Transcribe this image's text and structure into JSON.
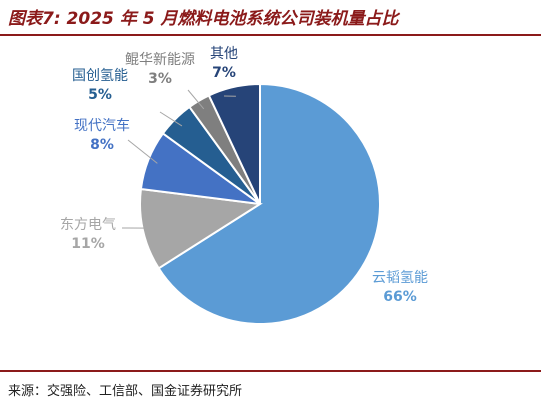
{
  "title": "图表7: 2025 年 5 月燃料电池系统公司装机量占比",
  "source": "来源：交强险、工信部、国金证券研究所",
  "chart_data": {
    "type": "pie",
    "start_angle_deg": 0,
    "direction": "clockwise",
    "slices": [
      {
        "label": "云韬氢能",
        "value": 66,
        "pct_text": "66%",
        "color": "#5b9bd5",
        "label_color": "#5b9bd5"
      },
      {
        "label": "东方电气",
        "value": 11,
        "pct_text": "11%",
        "color": "#a6a6a6",
        "label_color": "#a6a6a6"
      },
      {
        "label": "现代汽车",
        "value": 8,
        "pct_text": "8%",
        "color": "#4472c4",
        "label_color": "#4472c4"
      },
      {
        "label": "国创氢能",
        "value": 5,
        "pct_text": "5%",
        "color": "#255e91",
        "label_color": "#255e91"
      },
      {
        "label": "鲲华新能源",
        "value": 3,
        "pct_text": "3%",
        "color": "#7f7f7f",
        "label_color": "#7f7f7f"
      },
      {
        "label": "其他",
        "value": 7,
        "pct_text": "7%",
        "color": "#264478",
        "label_color": "#264478"
      }
    ]
  }
}
